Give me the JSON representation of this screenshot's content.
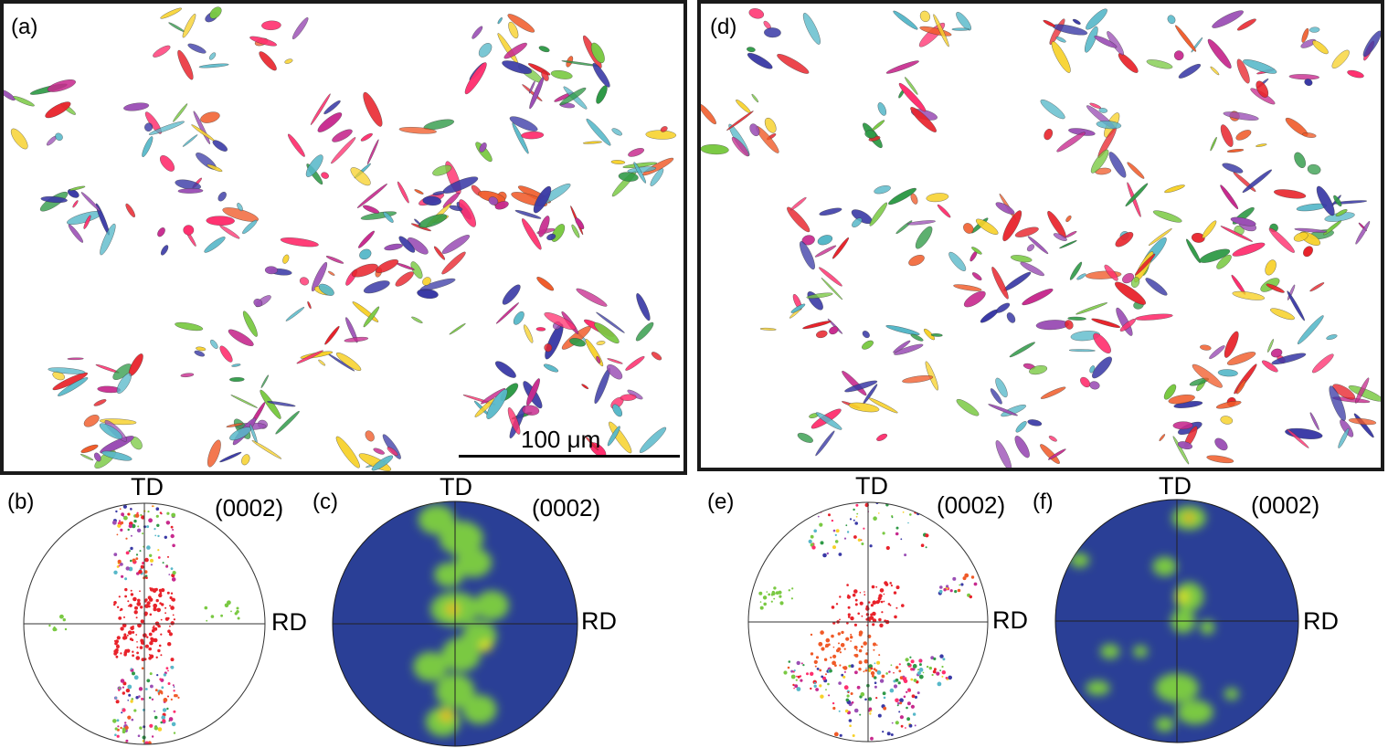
{
  "panels": {
    "a": {
      "label": "(a)"
    },
    "b": {
      "label": "(b)",
      "td": "TD",
      "rd": "RD",
      "plane": "(0002)"
    },
    "c": {
      "label": "(c)",
      "td": "TD",
      "rd": "RD",
      "plane": "(0002)"
    },
    "d": {
      "label": "(d)"
    },
    "e": {
      "label": "(e)",
      "td": "TD",
      "rd": "RD",
      "plane": "(0002)"
    },
    "f": {
      "label": "(f)",
      "td": "TD",
      "rd": "RD",
      "plane": "(0002)"
    }
  },
  "scale_bar": {
    "text": "100 μm"
  },
  "colors": {
    "frame": "#1a1a1a",
    "density_background": "#2a3f96",
    "density_low": "#7ac943",
    "density_mid": "#d9e021",
    "density_peak": "#e53222",
    "grain_palette": [
      "#e8232b",
      "#f05a28",
      "#7ac943",
      "#3a3aa6",
      "#c72a8e",
      "#57b8c9",
      "#9b4fb5",
      "#f7d12a",
      "#2f9a47",
      "#ff2f6e"
    ]
  }
}
